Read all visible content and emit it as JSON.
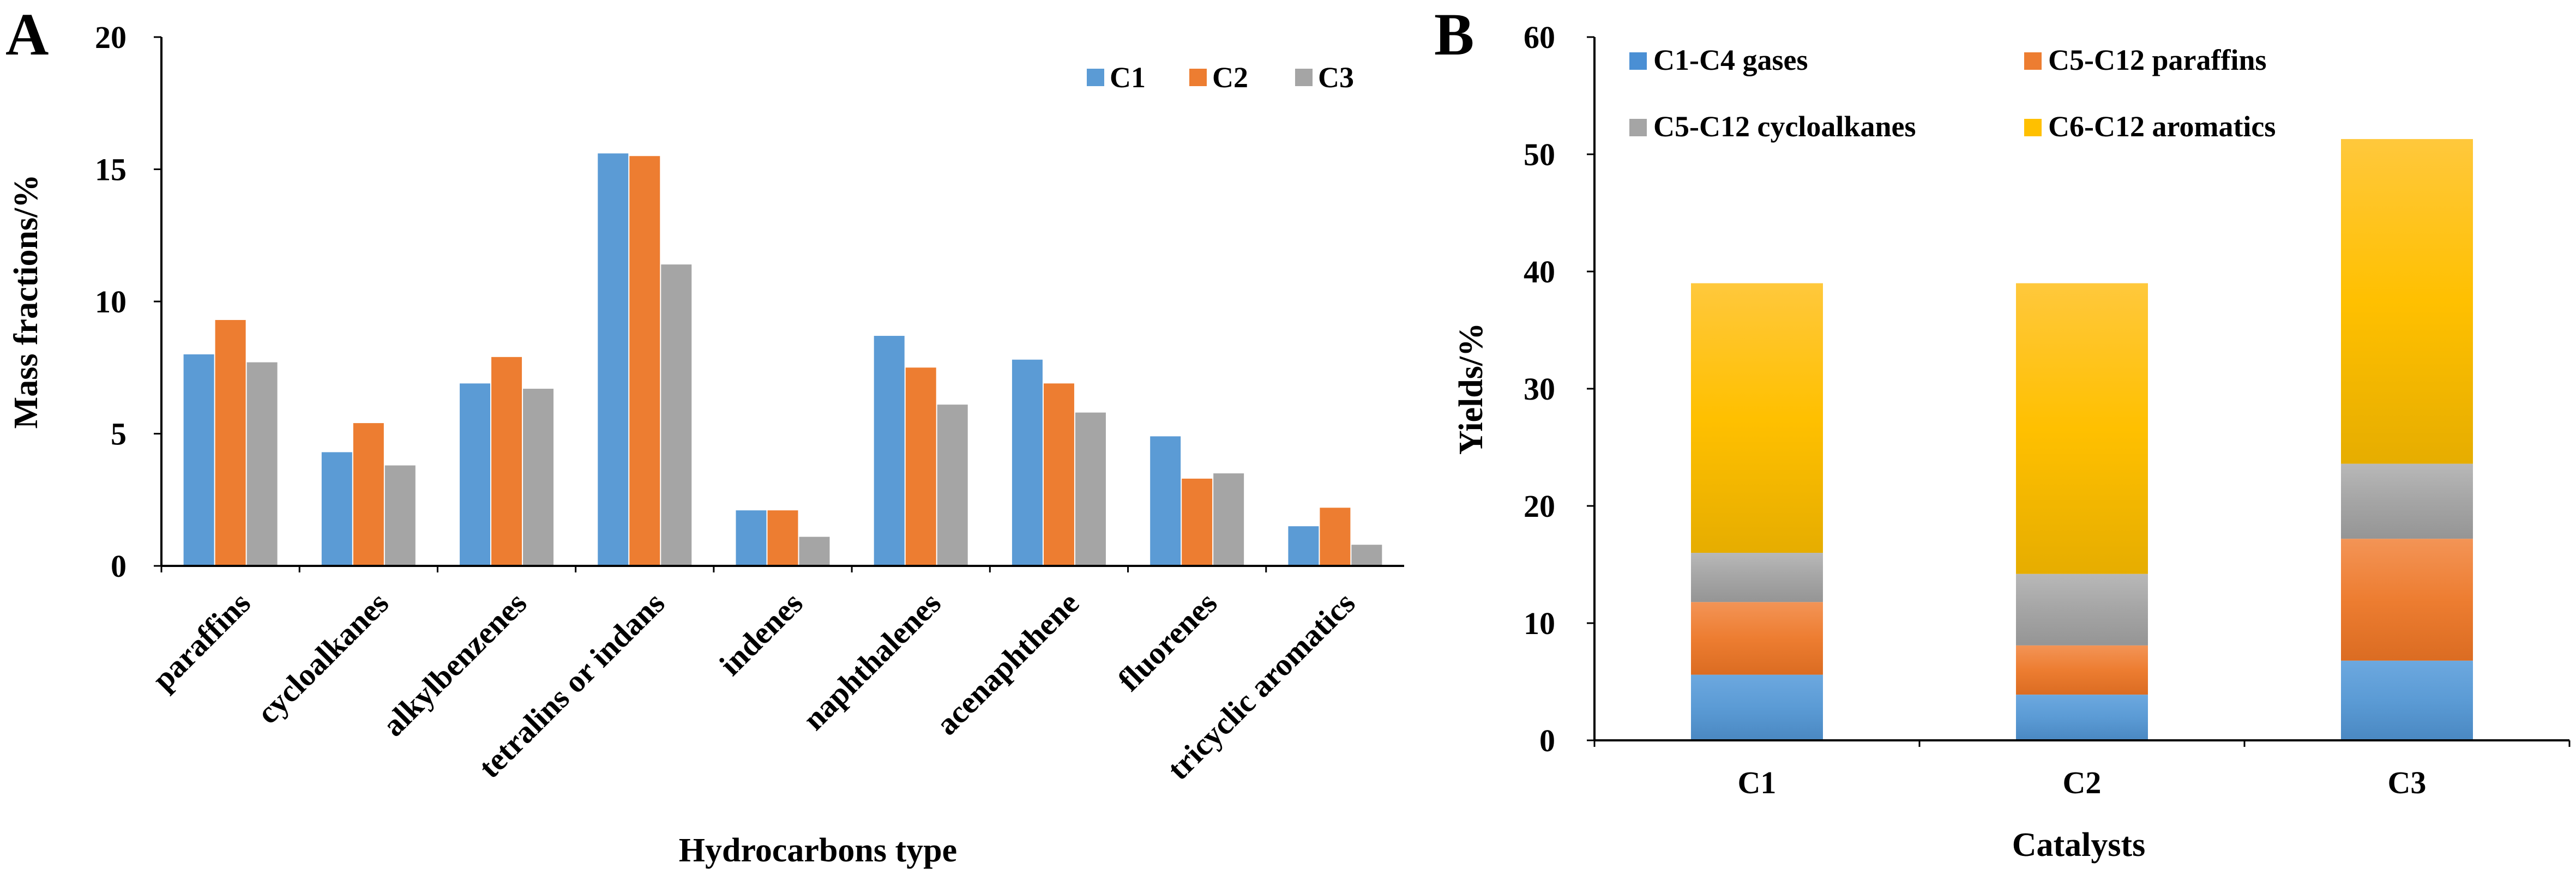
{
  "colors": {
    "C1": "#5B9BD5",
    "C2": "#ED7D31",
    "C3": "#A5A5A5",
    "gases": "#4A8FD4",
    "paraffins": "#ED7D31",
    "cycloalkanes": "#A5A5A5",
    "aromatics": "#FFC000"
  },
  "chart_data": [
    {
      "panel_label": "A",
      "type": "bar",
      "xlabel": "Hydrocarbons type",
      "ylabel": "Mass fractions/%",
      "ylim": [
        0,
        20
      ],
      "yticks": [
        "0",
        "5",
        "10",
        "15",
        "20"
      ],
      "grid": false,
      "legend_position": "top-right",
      "categories": [
        "paraffins",
        "cycloalkanes",
        "alkylbenzenes",
        "tetralins or indans",
        "indenes",
        "naphthalenes",
        "acenaphthene",
        "fluorenes",
        "tricyclic aromatics"
      ],
      "series": [
        {
          "name": "C1",
          "values": [
            8.0,
            4.3,
            6.9,
            15.6,
            2.1,
            8.7,
            7.8,
            4.9,
            1.5
          ]
        },
        {
          "name": "C2",
          "values": [
            9.3,
            5.4,
            7.9,
            15.5,
            2.1,
            7.5,
            6.9,
            3.3,
            2.2
          ]
        },
        {
          "name": "C3",
          "values": [
            7.7,
            3.8,
            6.7,
            11.4,
            1.1,
            6.1,
            5.8,
            3.5,
            0.8
          ]
        }
      ]
    },
    {
      "panel_label": "B",
      "type": "bar",
      "stacked": true,
      "xlabel": "Catalysts",
      "ylabel": "Yields/%",
      "ylim": [
        0,
        60
      ],
      "yticks": [
        "0",
        "10",
        "20",
        "30",
        "40",
        "50",
        "60"
      ],
      "grid": false,
      "legend_position": "top",
      "categories": [
        "C1",
        "C2",
        "C3"
      ],
      "series": [
        {
          "name": "C1-C4 gases",
          "values": [
            5.6,
            3.9,
            6.8
          ]
        },
        {
          "name": "C5-C12 paraffins",
          "values": [
            6.2,
            4.2,
            10.4
          ]
        },
        {
          "name": "C5-C12 cycloalkanes",
          "values": [
            4.2,
            6.1,
            6.4
          ]
        },
        {
          "name": "C6-C12 aromatics",
          "values": [
            23.0,
            24.8,
            27.7
          ]
        }
      ]
    }
  ]
}
